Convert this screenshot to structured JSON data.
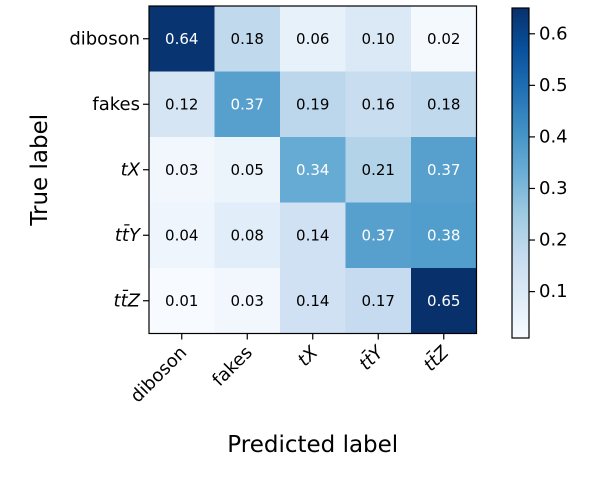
{
  "chart_data": {
    "type": "heatmap",
    "title": "",
    "xlabel": "Predicted label",
    "ylabel": "True label",
    "x_categories": [
      "diboson",
      "fakes",
      "tX",
      "tt̄Y",
      "tt̄Z"
    ],
    "y_categories": [
      "diboson",
      "fakes",
      "tX",
      "tt̄Y",
      "tt̄Z"
    ],
    "values": [
      [
        0.64,
        0.18,
        0.06,
        0.1,
        0.02
      ],
      [
        0.12,
        0.37,
        0.19,
        0.16,
        0.18
      ],
      [
        0.03,
        0.05,
        0.34,
        0.21,
        0.37
      ],
      [
        0.04,
        0.08,
        0.14,
        0.37,
        0.38
      ],
      [
        0.01,
        0.03,
        0.14,
        0.17,
        0.65
      ]
    ],
    "value_labels": [
      [
        "0.64",
        "0.18",
        "0.06",
        "0.10",
        "0.02"
      ],
      [
        "0.12",
        "0.37",
        "0.19",
        "0.16",
        "0.18"
      ],
      [
        "0.03",
        "0.05",
        "0.34",
        "0.21",
        "0.37"
      ],
      [
        "0.04",
        "0.08",
        "0.14",
        "0.37",
        "0.38"
      ],
      [
        "0.01",
        "0.03",
        "0.14",
        "0.17",
        "0.65"
      ]
    ],
    "colormap": "Blues",
    "colorbar": {
      "range": [
        0.01,
        0.65
      ],
      "ticks": [
        0.1,
        0.2,
        0.3,
        0.4,
        0.5,
        0.6
      ],
      "tick_labels": [
        "0.1",
        "0.2",
        "0.3",
        "0.4",
        "0.5",
        "0.6"
      ]
    },
    "italic_categories": [
      false,
      false,
      true,
      true,
      true
    ],
    "colors": {
      "low": "#f7fbff",
      "high": "#08306b",
      "text_dark": "#000000",
      "text_light": "#ffffff"
    }
  }
}
